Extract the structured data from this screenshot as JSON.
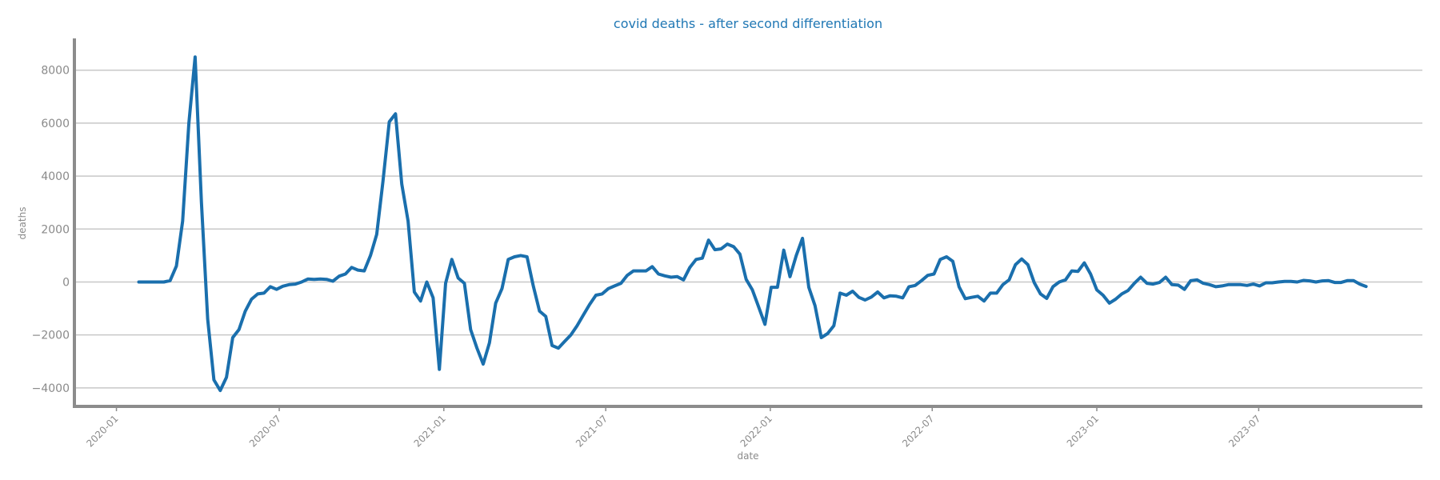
{
  "chart_data": {
    "type": "line",
    "title": "covid deaths - after second differentiation",
    "xlabel": "date",
    "ylabel": "deaths",
    "ylim": [
      -4700,
      9200
    ],
    "xlim": [
      "2019-11-15",
      "2023-12-31"
    ],
    "grid": "horizontal",
    "color": "#1a6fad",
    "yticks": [
      {
        "value": 8000,
        "label": "8000"
      },
      {
        "value": 6000,
        "label": "6000"
      },
      {
        "value": 4000,
        "label": "4000"
      },
      {
        "value": 2000,
        "label": "2000"
      },
      {
        "value": 0,
        "label": "0"
      },
      {
        "value": -2000,
        "label": "−2000"
      },
      {
        "value": -4000,
        "label": "−4000"
      }
    ],
    "xticks": [
      {
        "value": "2020-01-01",
        "label": "2020-01"
      },
      {
        "value": "2020-07-01",
        "label": "2020-07"
      },
      {
        "value": "2021-01-01",
        "label": "2021-01"
      },
      {
        "value": "2021-07-01",
        "label": "2021-07"
      },
      {
        "value": "2022-01-01",
        "label": "2022-01"
      },
      {
        "value": "2022-07-01",
        "label": "2022-07"
      },
      {
        "value": "2023-01-01",
        "label": "2023-01"
      },
      {
        "value": "2023-07-01",
        "label": "2023-07"
      }
    ],
    "series": [
      {
        "points": [
          [
            "2020-01-26",
            0
          ],
          [
            "2020-02-02",
            0
          ],
          [
            "2020-02-09",
            0
          ],
          [
            "2020-02-16",
            0
          ],
          [
            "2020-02-23",
            0
          ],
          [
            "2020-03-01",
            50
          ],
          [
            "2020-03-08",
            600
          ],
          [
            "2020-03-15",
            2300
          ],
          [
            "2020-03-22",
            6000
          ],
          [
            "2020-03-29",
            8500
          ],
          [
            "2020-04-05",
            3000
          ],
          [
            "2020-04-12",
            -1400
          ],
          [
            "2020-04-19",
            -3700
          ],
          [
            "2020-04-26",
            -4100
          ],
          [
            "2020-05-03",
            -3600
          ],
          [
            "2020-05-10",
            -2100
          ],
          [
            "2020-05-17",
            -1800
          ],
          [
            "2020-05-24",
            -1100
          ],
          [
            "2020-05-31",
            -650
          ],
          [
            "2020-06-07",
            -450
          ],
          [
            "2020-06-14",
            -420
          ],
          [
            "2020-06-21",
            -180
          ],
          [
            "2020-06-28",
            -280
          ],
          [
            "2020-07-05",
            -160
          ],
          [
            "2020-07-12",
            -100
          ],
          [
            "2020-07-19",
            -80
          ],
          [
            "2020-07-26",
            0
          ],
          [
            "2020-08-02",
            110
          ],
          [
            "2020-08-09",
            100
          ],
          [
            "2020-08-16",
            110
          ],
          [
            "2020-08-23",
            100
          ],
          [
            "2020-08-30",
            30
          ],
          [
            "2020-09-06",
            220
          ],
          [
            "2020-09-13",
            300
          ],
          [
            "2020-09-20",
            550
          ],
          [
            "2020-09-27",
            450
          ],
          [
            "2020-10-04",
            420
          ],
          [
            "2020-10-11",
            1000
          ],
          [
            "2020-10-18",
            1800
          ],
          [
            "2020-10-25",
            3800
          ],
          [
            "2020-11-01",
            6050
          ],
          [
            "2020-11-08",
            6350
          ],
          [
            "2020-11-15",
            3700
          ],
          [
            "2020-11-22",
            2300
          ],
          [
            "2020-11-29",
            -380
          ],
          [
            "2020-12-06",
            -720
          ],
          [
            "2020-12-13",
            0
          ],
          [
            "2020-12-20",
            -600
          ],
          [
            "2020-12-27",
            -3300
          ],
          [
            "2021-01-03",
            -50
          ],
          [
            "2021-01-10",
            850
          ],
          [
            "2021-01-17",
            150
          ],
          [
            "2021-01-24",
            -50
          ],
          [
            "2021-01-31",
            -1800
          ],
          [
            "2021-02-07",
            -2500
          ],
          [
            "2021-02-14",
            -3100
          ],
          [
            "2021-02-21",
            -2300
          ],
          [
            "2021-02-28",
            -800
          ],
          [
            "2021-03-07",
            -250
          ],
          [
            "2021-03-14",
            850
          ],
          [
            "2021-03-21",
            950
          ],
          [
            "2021-03-28",
            1000
          ],
          [
            "2021-04-04",
            950
          ],
          [
            "2021-04-11",
            -150
          ],
          [
            "2021-04-18",
            -1100
          ],
          [
            "2021-04-25",
            -1300
          ],
          [
            "2021-05-02",
            -2400
          ],
          [
            "2021-05-09",
            -2500
          ],
          [
            "2021-05-16",
            -2250
          ],
          [
            "2021-05-23",
            -2000
          ],
          [
            "2021-05-30",
            -1650
          ],
          [
            "2021-06-06",
            -1250
          ],
          [
            "2021-06-13",
            -850
          ],
          [
            "2021-06-20",
            -500
          ],
          [
            "2021-06-27",
            -450
          ],
          [
            "2021-07-04",
            -250
          ],
          [
            "2021-07-11",
            -150
          ],
          [
            "2021-07-18",
            -50
          ],
          [
            "2021-07-25",
            250
          ],
          [
            "2021-08-01",
            420
          ],
          [
            "2021-08-08",
            420
          ],
          [
            "2021-08-15",
            420
          ],
          [
            "2021-08-22",
            580
          ],
          [
            "2021-08-29",
            300
          ],
          [
            "2021-09-05",
            230
          ],
          [
            "2021-09-12",
            180
          ],
          [
            "2021-09-19",
            200
          ],
          [
            "2021-09-26",
            80
          ],
          [
            "2021-10-03",
            550
          ],
          [
            "2021-10-10",
            850
          ],
          [
            "2021-10-17",
            900
          ],
          [
            "2021-10-24",
            1580
          ],
          [
            "2021-10-31",
            1220
          ],
          [
            "2021-11-07",
            1250
          ],
          [
            "2021-11-14",
            1430
          ],
          [
            "2021-11-21",
            1330
          ],
          [
            "2021-11-28",
            1050
          ],
          [
            "2021-12-05",
            100
          ],
          [
            "2021-12-12",
            -300
          ],
          [
            "2021-12-19",
            -950
          ],
          [
            "2021-12-26",
            -1600
          ],
          [
            "2022-01-02",
            -200
          ],
          [
            "2022-01-09",
            -200
          ],
          [
            "2022-01-16",
            1200
          ],
          [
            "2022-01-23",
            200
          ],
          [
            "2022-01-30",
            1000
          ],
          [
            "2022-02-06",
            1650
          ],
          [
            "2022-02-13",
            -200
          ],
          [
            "2022-02-20",
            -900
          ],
          [
            "2022-02-27",
            -2100
          ],
          [
            "2022-03-06",
            -1950
          ],
          [
            "2022-03-13",
            -1650
          ],
          [
            "2022-03-20",
            -420
          ],
          [
            "2022-03-27",
            -500
          ],
          [
            "2022-04-03",
            -350
          ],
          [
            "2022-04-10",
            -580
          ],
          [
            "2022-04-17",
            -680
          ],
          [
            "2022-04-24",
            -570
          ],
          [
            "2022-05-01",
            -380
          ],
          [
            "2022-05-08",
            -600
          ],
          [
            "2022-05-15",
            -520
          ],
          [
            "2022-05-22",
            -540
          ],
          [
            "2022-05-29",
            -600
          ],
          [
            "2022-06-05",
            -180
          ],
          [
            "2022-06-12",
            -130
          ],
          [
            "2022-06-19",
            50
          ],
          [
            "2022-06-26",
            250
          ],
          [
            "2022-07-03",
            300
          ],
          [
            "2022-07-10",
            850
          ],
          [
            "2022-07-17",
            950
          ],
          [
            "2022-07-24",
            780
          ],
          [
            "2022-07-31",
            -180
          ],
          [
            "2022-08-07",
            -630
          ],
          [
            "2022-08-14",
            -580
          ],
          [
            "2022-08-21",
            -540
          ],
          [
            "2022-08-28",
            -720
          ],
          [
            "2022-09-04",
            -420
          ],
          [
            "2022-09-11",
            -420
          ],
          [
            "2022-09-18",
            -100
          ],
          [
            "2022-09-25",
            80
          ],
          [
            "2022-10-02",
            650
          ],
          [
            "2022-10-09",
            870
          ],
          [
            "2022-10-16",
            650
          ],
          [
            "2022-10-23",
            -20
          ],
          [
            "2022-10-30",
            -450
          ],
          [
            "2022-11-06",
            -620
          ],
          [
            "2022-11-13",
            -180
          ],
          [
            "2022-11-20",
            0
          ],
          [
            "2022-11-27",
            80
          ],
          [
            "2022-12-04",
            420
          ],
          [
            "2022-12-11",
            400
          ],
          [
            "2022-12-18",
            720
          ],
          [
            "2022-12-25",
            300
          ],
          [
            "2023-01-01",
            -300
          ],
          [
            "2023-01-08",
            -500
          ],
          [
            "2023-01-15",
            -800
          ],
          [
            "2023-01-22",
            -650
          ],
          [
            "2023-01-29",
            -450
          ],
          [
            "2023-02-05",
            -320
          ],
          [
            "2023-02-12",
            -50
          ],
          [
            "2023-02-19",
            180
          ],
          [
            "2023-02-26",
            -50
          ],
          [
            "2023-03-05",
            -80
          ],
          [
            "2023-03-12",
            -20
          ],
          [
            "2023-03-19",
            180
          ],
          [
            "2023-03-26",
            -100
          ],
          [
            "2023-04-02",
            -120
          ],
          [
            "2023-04-09",
            -280
          ],
          [
            "2023-04-16",
            50
          ],
          [
            "2023-04-23",
            80
          ],
          [
            "2023-04-30",
            -50
          ],
          [
            "2023-05-07",
            -100
          ],
          [
            "2023-05-14",
            -180
          ],
          [
            "2023-05-21",
            -150
          ],
          [
            "2023-05-28",
            -100
          ],
          [
            "2023-06-04",
            -100
          ],
          [
            "2023-06-11",
            -100
          ],
          [
            "2023-06-18",
            -130
          ],
          [
            "2023-06-25",
            -80
          ],
          [
            "2023-07-02",
            -150
          ],
          [
            "2023-07-09",
            -30
          ],
          [
            "2023-07-16",
            -30
          ],
          [
            "2023-07-23",
            0
          ],
          [
            "2023-07-30",
            20
          ],
          [
            "2023-08-06",
            20
          ],
          [
            "2023-08-13",
            0
          ],
          [
            "2023-08-20",
            60
          ],
          [
            "2023-08-27",
            40
          ],
          [
            "2023-09-03",
            0
          ],
          [
            "2023-09-10",
            40
          ],
          [
            "2023-09-17",
            50
          ],
          [
            "2023-09-24",
            -20
          ],
          [
            "2023-10-01",
            -20
          ],
          [
            "2023-10-08",
            50
          ],
          [
            "2023-10-15",
            50
          ],
          [
            "2023-10-22",
            -80
          ],
          [
            "2023-10-29",
            -170
          ]
        ]
      }
    ]
  }
}
